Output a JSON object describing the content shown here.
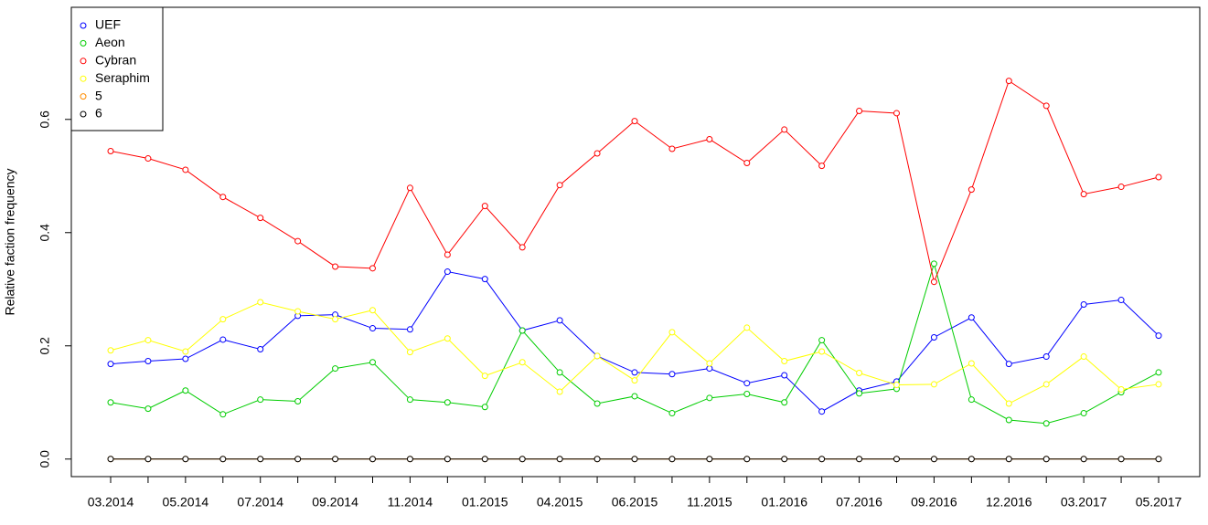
{
  "chart_data": {
    "type": "line",
    "y_label": "Relative faction frequency",
    "categories": [
      "03.2014",
      null,
      "05.2014",
      null,
      "07.2014",
      null,
      "09.2014",
      null,
      "11.2014",
      null,
      "01.2015",
      null,
      "04.2015",
      null,
      "06.2015",
      null,
      "11.2015",
      null,
      "01.2016",
      null,
      "07.2016",
      null,
      "09.2016",
      null,
      "12.2016",
      null,
      "03.2017",
      null,
      "05.2017"
    ],
    "series": [
      {
        "name": "UEF",
        "color": "#0000ff",
        "values": [
          0.168,
          0.173,
          0.177,
          0.211,
          0.194,
          0.253,
          0.255,
          0.231,
          0.229,
          0.331,
          0.318,
          0.227,
          0.245,
          0.182,
          0.153,
          0.15,
          0.16,
          0.134,
          0.148,
          0.084,
          0.121,
          0.137,
          0.215,
          0.25,
          0.168,
          0.181,
          0.273,
          0.281,
          0.218
        ]
      },
      {
        "name": "Aeon",
        "color": "#00cd00",
        "values": [
          0.1,
          0.089,
          0.121,
          0.079,
          0.105,
          0.102,
          0.16,
          0.171,
          0.105,
          0.1,
          0.092,
          0.227,
          0.153,
          0.098,
          0.111,
          0.081,
          0.108,
          0.115,
          0.1,
          0.21,
          0.116,
          0.124,
          0.345,
          0.105,
          0.069,
          0.063,
          0.081,
          0.118,
          0.153
        ]
      },
      {
        "name": "Cybran",
        "color": "#ff0000",
        "values": [
          0.544,
          0.531,
          0.511,
          0.463,
          0.426,
          0.385,
          0.34,
          0.337,
          0.479,
          0.361,
          0.447,
          0.374,
          0.484,
          0.54,
          0.597,
          0.548,
          0.565,
          0.523,
          0.582,
          0.518,
          0.615,
          0.611,
          0.313,
          0.476,
          0.668,
          0.624,
          0.468,
          0.481,
          0.498
        ]
      },
      {
        "name": "Seraphim",
        "color": "#ffff00",
        "values": [
          0.192,
          0.21,
          0.19,
          0.247,
          0.277,
          0.261,
          0.247,
          0.263,
          0.189,
          0.213,
          0.147,
          0.171,
          0.119,
          0.182,
          0.139,
          0.224,
          0.169,
          0.232,
          0.173,
          0.19,
          0.152,
          0.131,
          0.132,
          0.169,
          0.098,
          0.132,
          0.181,
          0.123,
          0.132
        ]
      },
      {
        "name": "5",
        "color": "#ff8c00",
        "values": [
          0,
          0,
          0,
          0,
          0,
          0,
          0,
          0,
          0,
          0,
          0,
          0,
          0,
          0,
          0,
          0,
          0,
          0,
          0,
          0,
          0,
          0,
          0,
          0,
          0,
          0,
          0,
          0,
          0
        ]
      },
      {
        "name": "6",
        "color": "#000000",
        "values": [
          0,
          0,
          0,
          0,
          0,
          0,
          0,
          0,
          0,
          0,
          0,
          0,
          0,
          0,
          0,
          0,
          0,
          0,
          0,
          0,
          0,
          0,
          0,
          0,
          0,
          0,
          0,
          0,
          0
        ]
      }
    ],
    "ylim": [
      -0.031,
      0.798
    ],
    "yticks": [
      {
        "value": 0,
        "label": "0.0"
      },
      0.2,
      0.4,
      0.6
    ],
    "legend": "top-left"
  }
}
